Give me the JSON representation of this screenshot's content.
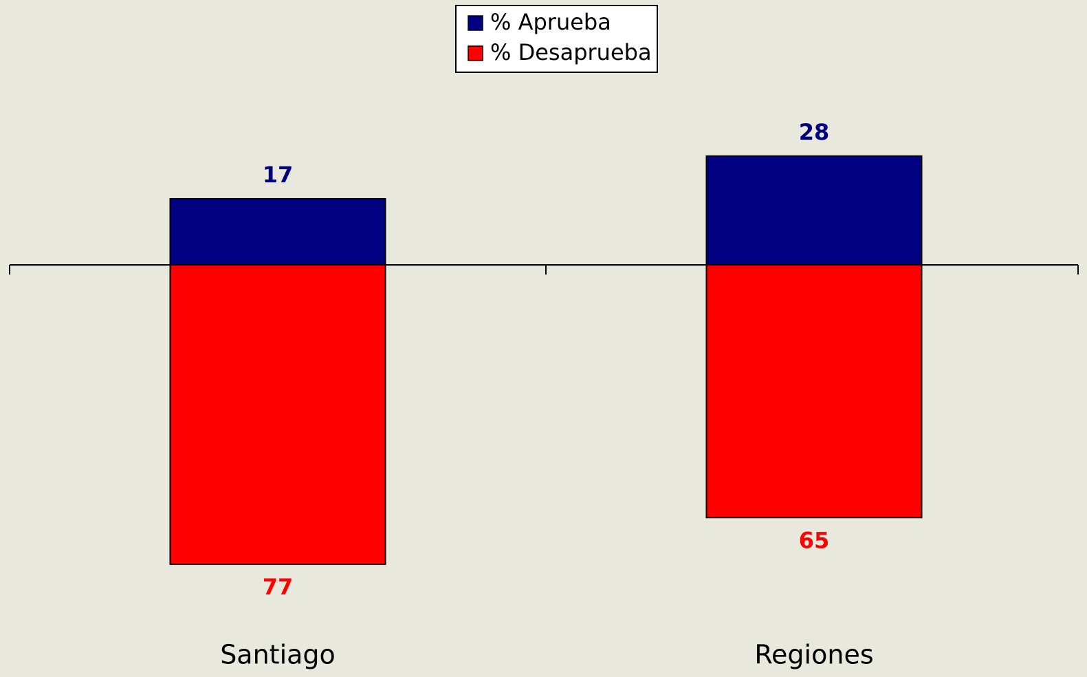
{
  "chart_data": {
    "type": "diverging_bar",
    "categories": [
      "Santiago",
      "Regiones"
    ],
    "series": [
      {
        "name": "% Aprueba",
        "color": "#000080",
        "values": [
          17,
          28
        ]
      },
      {
        "name": "% Desaprueba",
        "color": "#ff0000",
        "values": [
          77,
          65
        ]
      }
    ]
  }
}
